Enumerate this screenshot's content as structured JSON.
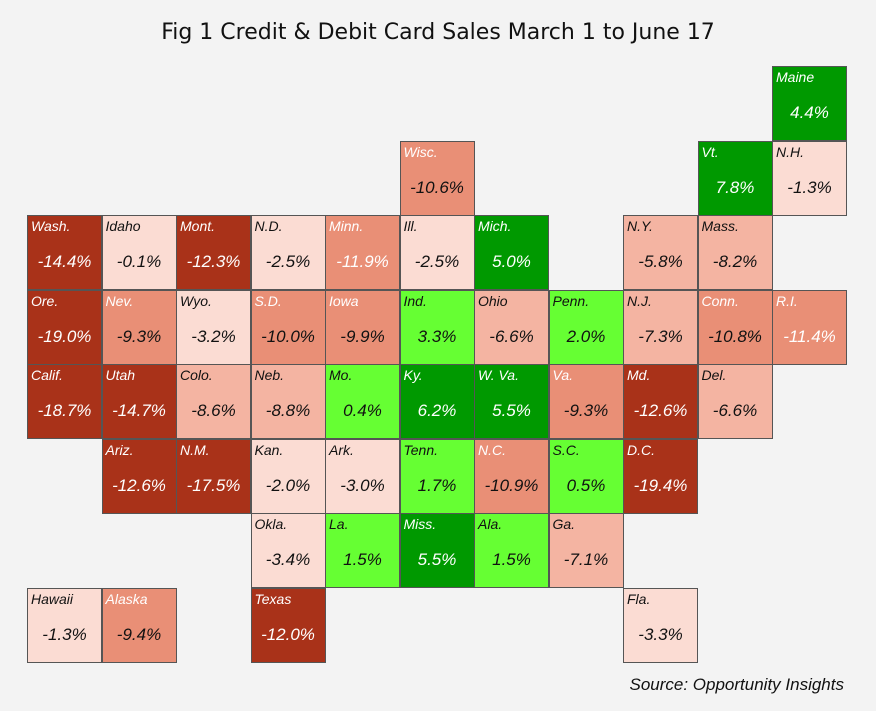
{
  "title": "Fig 1 Credit & Debit Card Sales March 1 to June 17",
  "source": "Source: Opportunity Insights",
  "colors": {
    "dark_red": "#a93219",
    "medium_red": "#e98f76",
    "light_red": "#f4b4a2",
    "pale_red": "#fbdcd3",
    "bright_green": "#66ff33",
    "dark_green": "#009900"
  },
  "chart_data": {
    "type": "heatmap",
    "title": "Fig 1 Credit & Debit Card Sales March 1 to June 17",
    "cells": [
      {
        "label": "Maine",
        "value": "4.4%",
        "row": 0,
        "col": 10
      },
      {
        "label": "Wisc.",
        "value": "-10.6%",
        "row": 1,
        "col": 5
      },
      {
        "label": "Vt.",
        "value": "7.8%",
        "row": 1,
        "col": 9
      },
      {
        "label": "N.H.",
        "value": "-1.3%",
        "row": 1,
        "col": 10
      },
      {
        "label": "Wash.",
        "value": "-14.4%",
        "row": 2,
        "col": 0
      },
      {
        "label": "Idaho",
        "value": "-0.1%",
        "row": 2,
        "col": 1
      },
      {
        "label": "Mont.",
        "value": "-12.3%",
        "row": 2,
        "col": 2
      },
      {
        "label": "N.D.",
        "value": "-2.5%",
        "row": 2,
        "col": 3
      },
      {
        "label": "Minn.",
        "value": "-11.9%",
        "row": 2,
        "col": 4
      },
      {
        "label": "Ill.",
        "value": "-2.5%",
        "row": 2,
        "col": 5
      },
      {
        "label": "Mich.",
        "value": "5.0%",
        "row": 2,
        "col": 6
      },
      {
        "label": "N.Y.",
        "value": "-5.8%",
        "row": 2,
        "col": 8
      },
      {
        "label": "Mass.",
        "value": "-8.2%",
        "row": 2,
        "col": 9
      },
      {
        "label": "Ore.",
        "value": "-19.0%",
        "row": 3,
        "col": 0
      },
      {
        "label": "Nev.",
        "value": "-9.3%",
        "row": 3,
        "col": 1
      },
      {
        "label": "Wyo.",
        "value": "-3.2%",
        "row": 3,
        "col": 2
      },
      {
        "label": "S.D.",
        "value": "-10.0%",
        "row": 3,
        "col": 3
      },
      {
        "label": "Iowa",
        "value": "-9.9%",
        "row": 3,
        "col": 4
      },
      {
        "label": "Ind.",
        "value": "3.3%",
        "row": 3,
        "col": 5
      },
      {
        "label": "Ohio",
        "value": "-6.6%",
        "row": 3,
        "col": 6
      },
      {
        "label": "Penn.",
        "value": "2.0%",
        "row": 3,
        "col": 7
      },
      {
        "label": "N.J.",
        "value": "-7.3%",
        "row": 3,
        "col": 8
      },
      {
        "label": "Conn.",
        "value": "-10.8%",
        "row": 3,
        "col": 9
      },
      {
        "label": "R.I.",
        "value": "-11.4%",
        "row": 3,
        "col": 10
      },
      {
        "label": "Calif.",
        "value": "-18.7%",
        "row": 4,
        "col": 0
      },
      {
        "label": "Utah",
        "value": "-14.7%",
        "row": 4,
        "col": 1
      },
      {
        "label": "Colo.",
        "value": "-8.6%",
        "row": 4,
        "col": 2
      },
      {
        "label": "Neb.",
        "value": "-8.8%",
        "row": 4,
        "col": 3
      },
      {
        "label": "Mo.",
        "value": "0.4%",
        "row": 4,
        "col": 4
      },
      {
        "label": "Ky.",
        "value": "6.2%",
        "row": 4,
        "col": 5
      },
      {
        "label": "W. Va.",
        "value": "5.5%",
        "row": 4,
        "col": 6
      },
      {
        "label": "Va.",
        "value": "-9.3%",
        "row": 4,
        "col": 7
      },
      {
        "label": "Md.",
        "value": "-12.6%",
        "row": 4,
        "col": 8
      },
      {
        "label": "Del.",
        "value": "-6.6%",
        "row": 4,
        "col": 9
      },
      {
        "label": "Ariz.",
        "value": "-12.6%",
        "row": 5,
        "col": 1
      },
      {
        "label": "N.M.",
        "value": "-17.5%",
        "row": 5,
        "col": 2
      },
      {
        "label": "Kan.",
        "value": "-2.0%",
        "row": 5,
        "col": 3
      },
      {
        "label": "Ark.",
        "value": "-3.0%",
        "row": 5,
        "col": 4
      },
      {
        "label": "Tenn.",
        "value": "1.7%",
        "row": 5,
        "col": 5
      },
      {
        "label": "N.C.",
        "value": "-10.9%",
        "row": 5,
        "col": 6
      },
      {
        "label": "S.C.",
        "value": "0.5%",
        "row": 5,
        "col": 7
      },
      {
        "label": "D.C.",
        "value": "-19.4%",
        "row": 5,
        "col": 8
      },
      {
        "label": "Okla.",
        "value": "-3.4%",
        "row": 6,
        "col": 3
      },
      {
        "label": "La.",
        "value": "1.5%",
        "row": 6,
        "col": 4
      },
      {
        "label": "Miss.",
        "value": "5.5%",
        "row": 6,
        "col": 5
      },
      {
        "label": "Ala.",
        "value": "1.5%",
        "row": 6,
        "col": 6
      },
      {
        "label": "Ga.",
        "value": "-7.1%",
        "row": 6,
        "col": 7
      },
      {
        "label": "Hawaii",
        "value": "-1.3%",
        "row": 7,
        "col": 0
      },
      {
        "label": "Alaska",
        "value": "-9.4%",
        "row": 7,
        "col": 1
      },
      {
        "label": "Texas",
        "value": "-12.0%",
        "row": 7,
        "col": 3
      },
      {
        "label": "Fla.",
        "value": "-3.3%",
        "row": 7,
        "col": 8
      }
    ]
  }
}
